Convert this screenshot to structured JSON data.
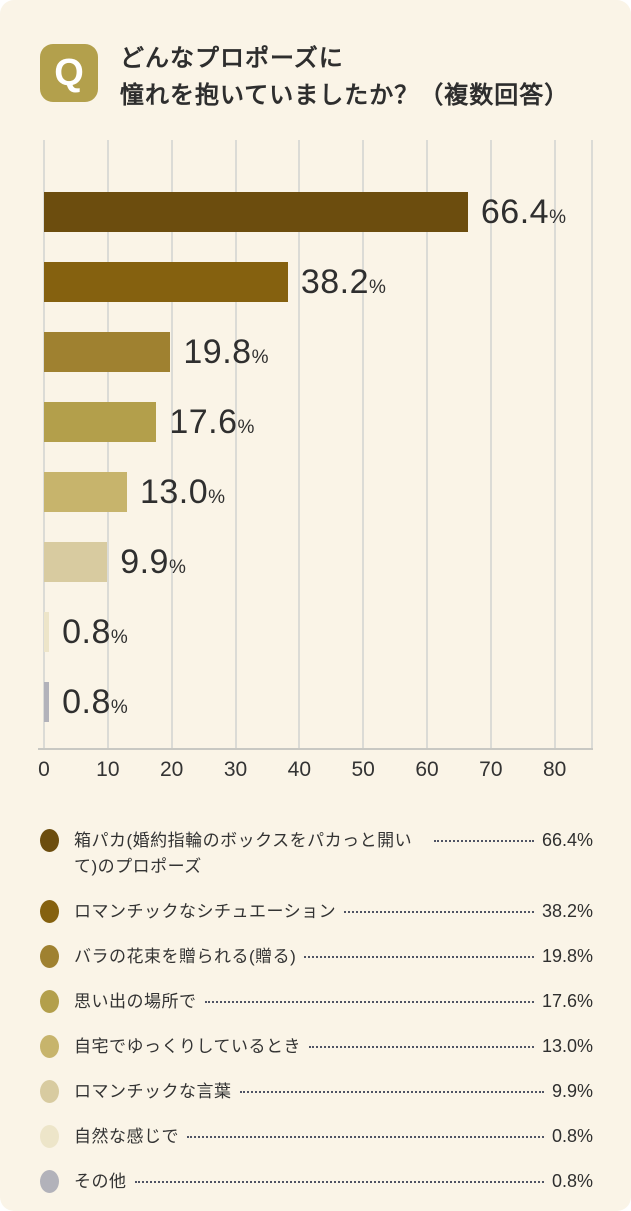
{
  "page": {
    "background": "#FFFFFF",
    "card_background": "#FAF4E7"
  },
  "header": {
    "q_icon": {
      "glyph": "Q",
      "background": "#B3A04C",
      "color": "#FFFFFF"
    },
    "title_line1": "どんなプロポーズに",
    "title_line2": "憧れを抱いていましたか？（複数回答）"
  },
  "chart_data": {
    "type": "bar",
    "orientation": "horizontal",
    "title": "どんなプロポーズに憧れを抱いていましたか？（複数回答）",
    "categories": [
      "箱パカ(婚約指輪のボックスをパカっと開いて)のプロポーズ",
      "ロマンチックなシチュエーション",
      "バラの花束を贈られる(贈る)",
      "思い出の場所で",
      "自宅でゆっくりしているとき",
      "ロマンチックな言葉",
      "自然な感じで",
      "その他"
    ],
    "values": [
      66.4,
      38.2,
      19.8,
      17.6,
      13.0,
      9.9,
      0.8,
      0.8
    ],
    "value_labels": [
      "66.4",
      "38.2",
      "19.8",
      "17.6",
      "13.0",
      "9.9",
      "0.8",
      "0.8"
    ],
    "unit": "%",
    "bar_colors": [
      "#6C4D0E",
      "#85610F",
      "#9F8130",
      "#B39F4B",
      "#C7B46C",
      "#D8CBA0",
      "#EDE5C9",
      "#B2B2BA"
    ],
    "x_ticks": [
      0,
      10,
      20,
      30,
      40,
      50,
      60,
      70,
      80
    ],
    "xlim": [
      0,
      86
    ],
    "grid": true,
    "gridline_color": "#DBDBD6",
    "axis_line_color": "#C8C8C3",
    "legend_position": "bottom"
  },
  "legend": {
    "leader_dot_color": "#4F5364",
    "items": [
      {
        "label": "箱パカ(婚約指輪のボックスをパカっと開いて)のプロポーズ",
        "value": "66.4%",
        "color": "#6C4D0E"
      },
      {
        "label": "ロマンチックなシチュエーション",
        "value": "38.2%",
        "color": "#85610F"
      },
      {
        "label": "バラの花束を贈られる(贈る)",
        "value": "19.8%",
        "color": "#9F8130"
      },
      {
        "label": "思い出の場所で",
        "value": "17.6%",
        "color": "#B39F4B"
      },
      {
        "label": "自宅でゆっくりしているとき",
        "value": "13.0%",
        "color": "#C7B46C"
      },
      {
        "label": "ロマンチックな言葉",
        "value": "9.9%",
        "color": "#D8CBA0"
      },
      {
        "label": "自然な感じで",
        "value": "0.8%",
        "color": "#EDE5C9"
      },
      {
        "label": "その他",
        "value": "0.8%",
        "color": "#B2B2BA"
      }
    ]
  }
}
